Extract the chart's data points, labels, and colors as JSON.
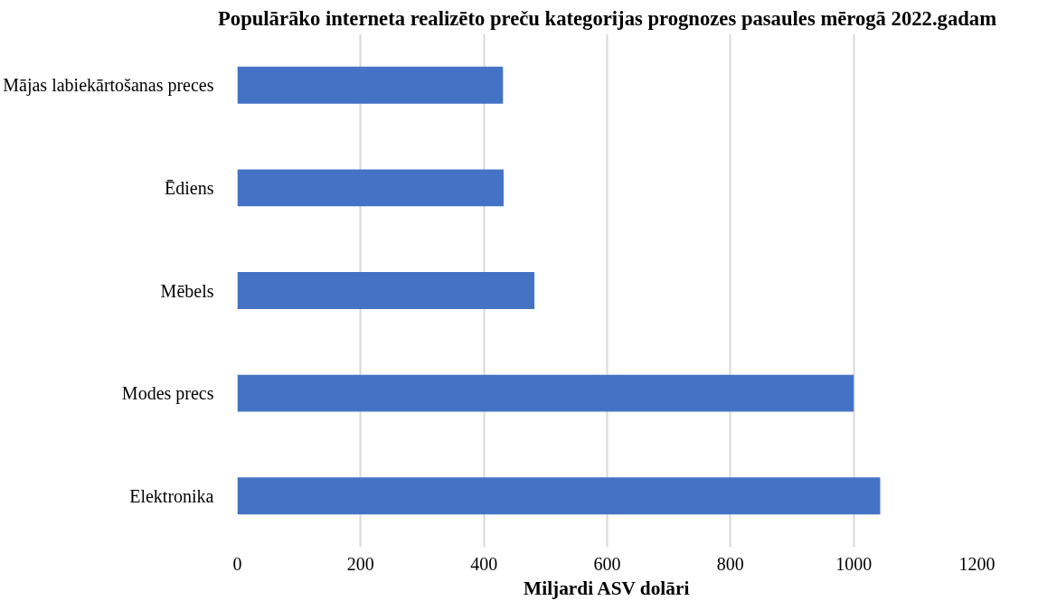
{
  "chart_data": {
    "type": "bar",
    "orientation": "horizontal",
    "title": "Populārāko interneta realizēto preču kategorijas prognozes pasaules mērogā 2022.gadam",
    "xlabel": "Miljardi ASV dolāri",
    "categories": [
      "Mājas labiekārtošanas preces",
      "Ēdiens",
      "Mēbels",
      "Modes precs",
      "Elektronika"
    ],
    "values": [
      431,
      432,
      482,
      1000,
      1043
    ],
    "color": "#4472c4",
    "xlim": [
      0,
      1200
    ],
    "xticks": [
      0,
      200,
      400,
      600,
      800,
      1000,
      1200
    ],
    "grid": "x"
  }
}
